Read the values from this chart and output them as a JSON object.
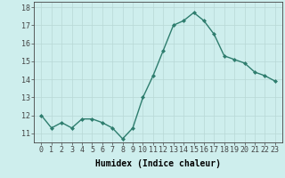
{
  "x": [
    0,
    1,
    2,
    3,
    4,
    5,
    6,
    7,
    8,
    9,
    10,
    11,
    12,
    13,
    14,
    15,
    16,
    17,
    18,
    19,
    20,
    21,
    22,
    23
  ],
  "y": [
    12.0,
    11.3,
    11.6,
    11.3,
    11.8,
    11.8,
    11.6,
    11.3,
    10.7,
    11.3,
    13.0,
    14.2,
    15.6,
    17.0,
    17.25,
    17.7,
    17.25,
    16.5,
    15.3,
    15.1,
    14.9,
    14.4,
    14.2,
    13.9
  ],
  "line_color": "#2e7d6e",
  "marker": "D",
  "markersize": 2.0,
  "linewidth": 1.0,
  "xlabel": "Humidex (Indice chaleur)",
  "xlabel_fontsize": 7,
  "tick_fontsize": 6,
  "ylim": [
    10.5,
    18.3
  ],
  "yticks": [
    11,
    12,
    13,
    14,
    15,
    16,
    17,
    18
  ],
  "xticks": [
    0,
    1,
    2,
    3,
    4,
    5,
    6,
    7,
    8,
    9,
    10,
    11,
    12,
    13,
    14,
    15,
    16,
    17,
    18,
    19,
    20,
    21,
    22,
    23
  ],
  "bg_color": "#ceeeed",
  "grid_color": "#b8d8d6",
  "border_color": "#444444"
}
